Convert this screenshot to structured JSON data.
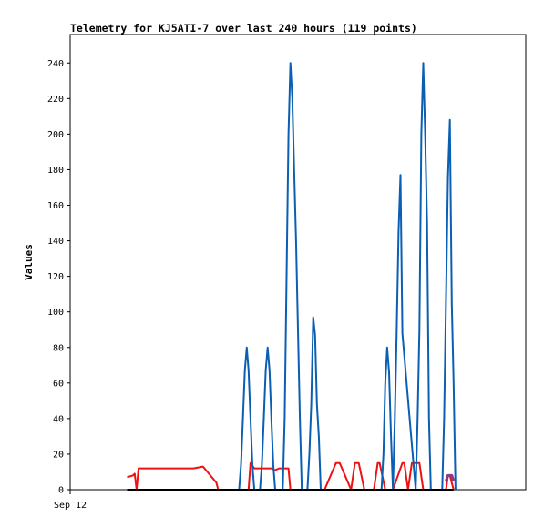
{
  "chart_data": {
    "type": "line",
    "title": "Telemetry for KJ5ATI-7 over last 240 hours (119 points)",
    "ylabel": "Values",
    "xlabel": "",
    "x_tick_labels": [
      {
        "label": "Sep 12",
        "hours": 0
      }
    ],
    "x_range_hours": [
      0,
      240
    ],
    "ylim": [
      0,
      256
    ],
    "y_ticks": [
      0,
      20,
      40,
      60,
      80,
      100,
      120,
      140,
      160,
      180,
      200,
      220,
      240
    ],
    "grid": false,
    "legend": "none",
    "series": [
      {
        "color": "#ee1111",
        "x": [
          30,
          33,
          34,
          35,
          36,
          40,
          60,
          65,
          70,
          77,
          78,
          90,
          94,
          95,
          97,
          102,
          103,
          104,
          106,
          108,
          110,
          115,
          116,
          134,
          140,
          142,
          148,
          150,
          152,
          155,
          160,
          162,
          163,
          166,
          170,
          175,
          176,
          178,
          180,
          184,
          186,
          188,
          190,
          198,
          199,
          200,
          202
        ],
        "y": [
          7,
          8,
          9,
          0,
          12,
          12,
          12,
          12,
          13,
          4,
          0,
          0,
          0,
          15,
          12,
          12,
          12,
          12,
          12,
          11,
          12,
          12,
          0,
          0,
          15,
          15,
          0,
          15,
          15,
          0,
          0,
          15,
          15,
          0,
          0,
          15,
          15,
          0,
          15,
          15,
          0,
          0,
          0,
          0,
          8,
          8,
          0
        ]
      },
      {
        "color": "#0a5fb3",
        "x": [
          30,
          88,
          89,
          90,
          91,
          92,
          93,
          94,
          95,
          96,
          97,
          98,
          100,
          101,
          102,
          103,
          104,
          105,
          106,
          107,
          108,
          112,
          113,
          114,
          115,
          116,
          117,
          118,
          119,
          120,
          121,
          122,
          125,
          126,
          127,
          128,
          129,
          130,
          131,
          132,
          133,
          134,
          164,
          165,
          166,
          167,
          168,
          169,
          170,
          171,
          172,
          173,
          174,
          175,
          182,
          183,
          184,
          185,
          186,
          187,
          188,
          189,
          190,
          191,
          192,
          196,
          197,
          198,
          199,
          200,
          201,
          202,
          203
        ],
        "y": [
          0,
          0,
          0,
          14,
          40,
          67,
          80,
          67,
          40,
          14,
          0,
          0,
          0,
          14,
          40,
          67,
          80,
          67,
          40,
          14,
          0,
          0,
          40,
          120,
          200,
          240,
          220,
          180,
          140,
          90,
          40,
          0,
          0,
          20,
          48,
          97,
          87,
          48,
          30,
          0,
          0,
          0,
          0,
          20,
          60,
          80,
          66,
          30,
          0,
          40,
          88,
          145,
          177,
          88,
          0,
          40,
          90,
          200,
          240,
          200,
          150,
          40,
          0,
          0,
          0,
          0,
          40,
          108,
          176,
          208,
          105,
          60,
          0
        ]
      },
      {
        "color": "#000000",
        "x": [
          30,
          202
        ],
        "y": [
          0,
          0
        ]
      },
      {
        "color": "#8b3a8b",
        "x": [
          198,
          199,
          200,
          201,
          202
        ],
        "y": [
          5,
          8,
          8,
          8,
          5
        ]
      }
    ]
  }
}
